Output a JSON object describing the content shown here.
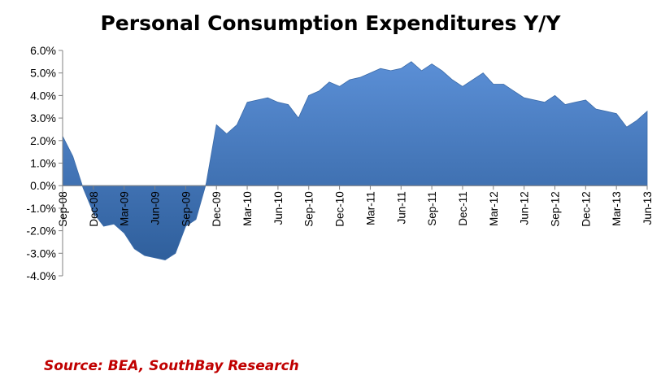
{
  "chart_data": {
    "type": "area",
    "title": "Personal Consumption  Expenditures Y/Y",
    "source": "Source: BEA, SouthBay Research",
    "ylim": [
      -0.04,
      0.06
    ],
    "yticks": [
      "6.0%",
      "5.0%",
      "4.0%",
      "3.0%",
      "2.0%",
      "1.0%",
      "0.0%",
      "-1.0%",
      "-2.0%",
      "-3.0%",
      "-4.0%"
    ],
    "xticks": [
      "Sep-08",
      "Dec-08",
      "Mar-09",
      "Jun-09",
      "Sep-09",
      "Dec-09",
      "Mar-10",
      "Jun-10",
      "Sep-10",
      "Dec-10",
      "Mar-11",
      "Jun-11",
      "Sep-11",
      "Dec-11",
      "Mar-12",
      "Jun-12",
      "Sep-12",
      "Dec-12",
      "Mar-13",
      "Jun-13"
    ],
    "x": [
      "Sep-08",
      "Oct-08",
      "Nov-08",
      "Dec-08",
      "Jan-09",
      "Feb-09",
      "Mar-09",
      "Apr-09",
      "May-09",
      "Jun-09",
      "Jul-09",
      "Aug-09",
      "Sep-09",
      "Oct-09",
      "Nov-09",
      "Dec-09",
      "Jan-10",
      "Feb-10",
      "Mar-10",
      "Apr-10",
      "May-10",
      "Jun-10",
      "Jul-10",
      "Aug-10",
      "Sep-10",
      "Oct-10",
      "Nov-10",
      "Dec-10",
      "Jan-11",
      "Feb-11",
      "Mar-11",
      "Apr-11",
      "May-11",
      "Jun-11",
      "Jul-11",
      "Aug-11",
      "Sep-11",
      "Oct-11",
      "Nov-11",
      "Dec-11",
      "Jan-12",
      "Feb-12",
      "Mar-12",
      "Apr-12",
      "May-12",
      "Jun-12",
      "Jul-12",
      "Aug-12",
      "Sep-12",
      "Oct-12",
      "Nov-12",
      "Dec-12",
      "Jan-13",
      "Feb-13",
      "Mar-13",
      "Apr-13",
      "May-13",
      "Jun-13"
    ],
    "values": [
      0.022,
      0.013,
      -0.001,
      -0.012,
      -0.018,
      -0.017,
      -0.021,
      -0.028,
      -0.031,
      -0.032,
      -0.033,
      -0.03,
      -0.018,
      -0.015,
      0.001,
      0.027,
      0.023,
      0.027,
      0.037,
      0.038,
      0.039,
      0.037,
      0.036,
      0.03,
      0.04,
      0.042,
      0.046,
      0.044,
      0.047,
      0.048,
      0.05,
      0.052,
      0.051,
      0.052,
      0.055,
      0.051,
      0.054,
      0.051,
      0.047,
      0.044,
      0.047,
      0.05,
      0.045,
      0.045,
      0.042,
      0.039,
      0.038,
      0.037,
      0.04,
      0.036,
      0.037,
      0.038,
      0.034,
      0.033,
      0.032,
      0.026,
      0.029,
      0.033
    ],
    "color": "#4f81bd",
    "grid": false
  }
}
